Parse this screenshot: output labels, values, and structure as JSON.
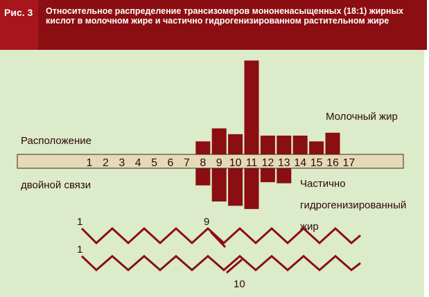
{
  "figure": {
    "label": "Рис. 3",
    "title": "Относительное распределение трансизомеров мононенасыщенных (18:1) жирных кислот в молочном жире и частично гидрогенизированном растительном жире"
  },
  "colors": {
    "header": "#8b0e12",
    "label_box": "#a8151c",
    "panel": "#dcebc9",
    "bar": "#8b0e12",
    "axis_band": "#e6d9b8"
  },
  "labels": {
    "axis_line1": "Расположение",
    "axis_line2": "двойной связи",
    "milk_fat": "Молочный жир",
    "hydro_line1": "Частично",
    "hydro_line2": "гидрогенизированный",
    "hydro_line3": "жир",
    "chain1_start": "1",
    "chain1_bond": "9",
    "chain2_start": "1",
    "chain2_bond": "10"
  },
  "chart_data": {
    "type": "bar",
    "categories": [
      "1",
      "2",
      "3",
      "4",
      "5",
      "6",
      "7",
      "8",
      "9",
      "10",
      "11",
      "12",
      "13",
      "14",
      "15",
      "16",
      "17"
    ],
    "series": [
      {
        "name": "Молочный жир",
        "values": [
          0,
          0,
          0,
          0,
          0,
          0,
          0,
          9,
          18,
          14,
          65,
          13,
          13,
          13,
          9,
          15,
          0
        ]
      },
      {
        "name": "Частично гидрогенизированный жир",
        "values": [
          0,
          0,
          0,
          0,
          0,
          0,
          0,
          -16,
          -31,
          -35,
          -38,
          -13,
          -14,
          0,
          0,
          0,
          0
        ]
      }
    ],
    "ylim": [
      -40,
      70
    ],
    "grid": false,
    "legend": "labels beside bars"
  }
}
